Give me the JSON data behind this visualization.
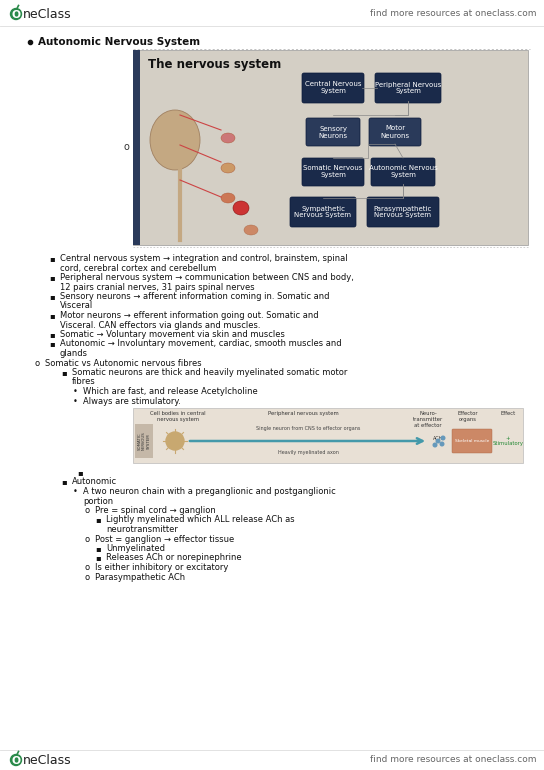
{
  "bg_color": "#ffffff",
  "header_text_right": "find more resources at oneclass.com",
  "footer_text_right": "find more resources at oneclass.com",
  "logo_color": "#2a8a4a",
  "title_bullet": "Autonomic Nervous System",
  "nervous_system_title": "The nervous system",
  "diagram_bg": "#d4cfc5",
  "diagram_left_bar": "#2a3a5a",
  "box_color_dark": "#1a2a4a",
  "box_color_mid": "#2a3a5a",
  "body_lines": [
    {
      "indent": 2,
      "bullet": "square",
      "text": "Central nervous system → integration and control, brainstem, spinal\ncord, cerebral cortex and cerebellum"
    },
    {
      "indent": 2,
      "bullet": "square",
      "text": "Peripheral nervous system → communication between CNS and body,\n12 pairs cranial nerves, 31 pairs spinal nerves"
    },
    {
      "indent": 2,
      "bullet": "square",
      "text": "Sensory neurons → afferent information coming in. Somatic and\nVisceral"
    },
    {
      "indent": 2,
      "bullet": "square",
      "text": "Motor neurons → efferent information going out. Somatic and\nVisceral. CAN effectors via glands and muscles."
    },
    {
      "indent": 2,
      "bullet": "square",
      "text": "Somatic → Voluntary movement via skin and muscles"
    },
    {
      "indent": 2,
      "bullet": "square",
      "text": "Autonomic → Involuntary movement, cardiac, smooth muscles and\nglands"
    },
    {
      "indent": 1,
      "bullet": "o",
      "text": "Somatic vs Autonomic nervous fibres"
    },
    {
      "indent": 3,
      "bullet": "square",
      "text": "Somatic neurons are thick and heavily myelinated somatic motor\nfibres"
    },
    {
      "indent": 4,
      "bullet": "round",
      "text": "Which are fast, and release Acetylcholine"
    },
    {
      "indent": 4,
      "bullet": "round",
      "text": "Always are stimulatory.",
      "insert_diagram": true
    },
    {
      "indent": 3,
      "bullet": "square",
      "text": "Autonomic"
    },
    {
      "indent": 4,
      "bullet": "round",
      "text": "A two neuron chain with a preganglionic and postganglionic\nportion"
    },
    {
      "indent": 5,
      "bullet": "o",
      "text": "Pre = spinal cord → ganglion"
    },
    {
      "indent": 6,
      "bullet": "square",
      "text": "Lightly myelinated which ALL release ACh as\nneurotransmitter"
    },
    {
      "indent": 5,
      "bullet": "o",
      "text": "Post = ganglion → effector tissue"
    },
    {
      "indent": 6,
      "bullet": "square",
      "text": "Unmyelinated"
    },
    {
      "indent": 6,
      "bullet": "square",
      "text": "Releases ACh or norepinephrine"
    },
    {
      "indent": 5,
      "bullet": "o",
      "text": "Is either inhibitory or excitatory"
    },
    {
      "indent": 5,
      "bullet": "o",
      "text": "Parasympathetic ACh"
    }
  ]
}
